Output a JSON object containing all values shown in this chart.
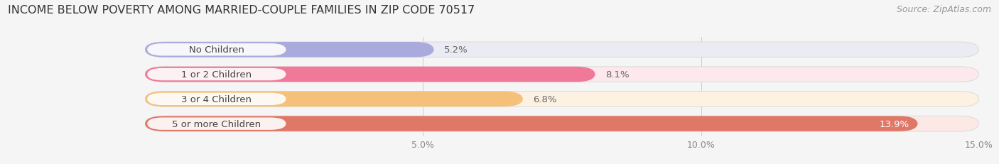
{
  "title": "INCOME BELOW POVERTY AMONG MARRIED-COUPLE FAMILIES IN ZIP CODE 70517",
  "source": "Source: ZipAtlas.com",
  "categories": [
    "No Children",
    "1 or 2 Children",
    "3 or 4 Children",
    "5 or more Children"
  ],
  "values": [
    5.2,
    8.1,
    6.8,
    13.9
  ],
  "bar_colors": [
    "#aaaadd",
    "#f07898",
    "#f5c07a",
    "#e07868"
  ],
  "bar_bg_colors": [
    "#ebebf3",
    "#fce8ed",
    "#fdf2e2",
    "#fce9e6"
  ],
  "value_label_colors": [
    "#666666",
    "#666666",
    "#666666",
    "#ffffff"
  ],
  "xlim": [
    0,
    15.0
  ],
  "xticks": [
    5.0,
    10.0,
    15.0
  ],
  "xtick_labels": [
    "5.0%",
    "10.0%",
    "15.0%"
  ],
  "title_fontsize": 11.5,
  "source_fontsize": 9,
  "bar_label_fontsize": 9.5,
  "category_fontsize": 9.5,
  "background_color": "#f5f5f5"
}
